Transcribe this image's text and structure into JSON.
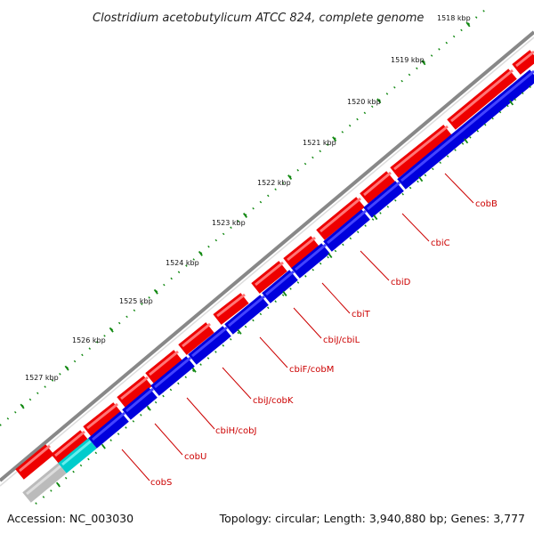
{
  "title": "Clostridium acetobutylicum ATCC 824, complete genome",
  "kbp_labels": [
    "1518 kbp",
    "1519 kbp",
    "1520 kbp",
    "1521 kbp",
    "1522 kbp",
    "1523 kbp",
    "1524 kbp",
    "1525 kbp",
    "1526 kbp",
    "1527 kbp"
  ],
  "genes": [
    {
      "label": "cobB",
      "color": "#0000dd"
    },
    {
      "label": "cbiC",
      "color": "#0000dd"
    },
    {
      "label": "cbiD",
      "color": "#0000dd"
    },
    {
      "label": "cbiT",
      "color": "#0000dd"
    },
    {
      "label": "cbiJ/cbiL",
      "color": "#0000dd"
    },
    {
      "label": "cbiF/cobM",
      "color": "#0000dd"
    },
    {
      "label": "cbiJ/cobK",
      "color": "#0000dd"
    },
    {
      "label": "cbiH/cobJ",
      "color": "#0000dd"
    },
    {
      "label": "cobU",
      "color": "#00cccc"
    },
    {
      "label": "cobS",
      "color": "#bbbbbb"
    }
  ],
  "footer": {
    "accession": "Accession: NC_003030",
    "stats": "Topology: circular; Length: 3,940,880 bp; Genes: 3,777"
  },
  "colors": {
    "forward_strand": "#ee0000",
    "reverse_strand": "#0000dd",
    "backbone": "#888888",
    "ticks": "#118811"
  }
}
